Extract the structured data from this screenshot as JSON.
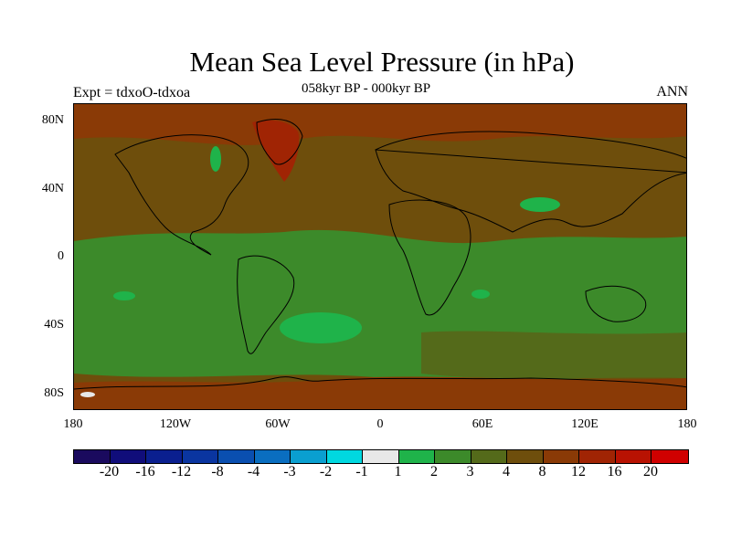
{
  "title": "Mean Sea Level Pressure (in hPa)",
  "subtitle_center": "058kyr BP - 000kyr BP",
  "subtitle_left": "Expt = tdxoO-tdxoa",
  "subtitle_right": "ANN",
  "lat_labels": [
    "80N",
    "40N",
    "0",
    "40S",
    "80S"
  ],
  "lon_labels": [
    "180",
    "120W",
    "60W",
    "0",
    "60E",
    "120E",
    "180"
  ],
  "colorbar": {
    "colors": [
      "#1a0a5e",
      "#100d7a",
      "#0a1f8f",
      "#0a35a0",
      "#0a4fb0",
      "#0a6ec0",
      "#0a9fd0",
      "#00d8e0",
      "#e8e8e8",
      "#1fb34a",
      "#3c8a2a",
      "#546a1a",
      "#6e4e0c",
      "#8a3a06",
      "#a02404",
      "#b81202",
      "#d00000"
    ],
    "labels": [
      "-20",
      "-16",
      "-12",
      "-8",
      "-4",
      "-3",
      "-2",
      "-1",
      "1",
      "2",
      "3",
      "4",
      "8",
      "12",
      "16",
      "20"
    ]
  },
  "field_colors": {
    "brown": "#6e4e0c",
    "dark_brown": "#8a3a06",
    "red": "#a02404",
    "olive": "#546a1a",
    "green": "#3c8a2a",
    "bright_green": "#1fb34a",
    "white": "#e8e8e8"
  }
}
